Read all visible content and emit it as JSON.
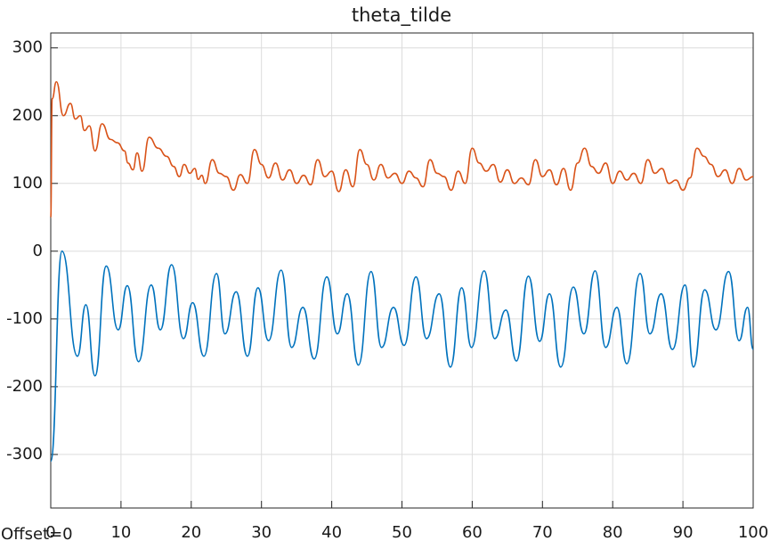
{
  "chart_data": {
    "type": "line",
    "title": "theta_tilde",
    "annotation": "Offset=0",
    "xlim": [
      0,
      100
    ],
    "xticks": [
      0,
      10,
      20,
      30,
      40,
      50,
      60,
      70,
      80,
      90,
      100
    ],
    "ylim": [
      -379,
      322
    ],
    "yticks": [
      -300,
      -200,
      -100,
      0,
      100,
      200,
      300
    ],
    "grid": true,
    "series": [
      {
        "color": "#0072bd",
        "x": [
          0,
          1.6,
          3.8,
          5.0,
          6.3,
          7.9,
          9.6,
          10.9,
          12.5,
          14.3,
          15.6,
          17.2,
          18.9,
          20.2,
          21.8,
          23.6,
          24.8,
          26.4,
          28.0,
          29.5,
          31.0,
          32.8,
          34.3,
          35.9,
          37.5,
          39.3,
          40.8,
          42.2,
          43.8,
          45.6,
          47.1,
          48.8,
          50.3,
          52.0,
          53.5,
          55.3,
          56.9,
          58.5,
          59.9,
          61.7,
          63.2,
          64.8,
          66.3,
          68.0,
          69.6,
          71.0,
          72.6,
          74.4,
          75.9,
          77.5,
          79.0,
          80.6,
          82.0,
          83.9,
          85.3,
          86.9,
          88.5,
          90.3,
          91.5,
          93.1,
          94.7,
          96.5,
          98.0,
          99.2,
          100
        ],
        "values": [
          -310,
          0,
          -155,
          -79,
          -184,
          -22,
          -116,
          -51,
          -163,
          -50,
          -116,
          -20,
          -129,
          -76,
          -155,
          -33,
          -122,
          -60,
          -155,
          -54,
          -132,
          -28,
          -142,
          -83,
          -159,
          -38,
          -122,
          -63,
          -168,
          -30,
          -142,
          -83,
          -139,
          -38,
          -129,
          -63,
          -171,
          -54,
          -142,
          -29,
          -129,
          -87,
          -162,
          -37,
          -133,
          -63,
          -171,
          -53,
          -122,
          -29,
          -142,
          -83,
          -166,
          -33,
          -122,
          -63,
          -145,
          -50,
          -171,
          -57,
          -116,
          -30,
          -132,
          -83,
          -145
        ]
      },
      {
        "color": "#d95319",
        "x": [
          0,
          0.2,
          0.8,
          1.8,
          2.8,
          3.5,
          4.2,
          4.8,
          5.5,
          6.3,
          7.3,
          8.5,
          9.5,
          10.5,
          11,
          11.7,
          12.3,
          13,
          14,
          15.3,
          16.5,
          17.5,
          18.3,
          19,
          19.8,
          20.5,
          21,
          21.5,
          22,
          23,
          24,
          25,
          26,
          27,
          28,
          29,
          30,
          31,
          32,
          33,
          34,
          35,
          36,
          37,
          38,
          39,
          40,
          41,
          42,
          43,
          44,
          45,
          46,
          47,
          48,
          49,
          50,
          51,
          52,
          53,
          54,
          55,
          56,
          57,
          58,
          59,
          60,
          61,
          62,
          63,
          64,
          65,
          66,
          67,
          68,
          69,
          70,
          71,
          72,
          73,
          74,
          75,
          76,
          77,
          78,
          79,
          80,
          81,
          82,
          83,
          84,
          85,
          86,
          87,
          88,
          89,
          90,
          91,
          92,
          93,
          94,
          95,
          96,
          97,
          98,
          99,
          100
        ],
        "values": [
          50,
          225,
          250,
          200,
          218,
          195,
          200,
          178,
          185,
          148,
          188,
          165,
          160,
          148,
          130,
          120,
          145,
          118,
          168,
          152,
          140,
          125,
          110,
          128,
          115,
          122,
          106,
          112,
          100,
          135,
          115,
          110,
          90,
          113,
          100,
          150,
          128,
          108,
          130,
          105,
          120,
          100,
          112,
          98,
          135,
          110,
          118,
          88,
          120,
          95,
          150,
          128,
          105,
          128,
          108,
          115,
          100,
          118,
          108,
          95,
          135,
          115,
          110,
          90,
          118,
          100,
          152,
          130,
          118,
          128,
          102,
          120,
          100,
          108,
          98,
          135,
          110,
          120,
          98,
          122,
          90,
          130,
          152,
          125,
          115,
          130,
          100,
          118,
          105,
          115,
          100,
          135,
          115,
          122,
          100,
          105,
          90,
          108,
          152,
          140,
          128,
          110,
          120,
          100,
          122,
          105,
          110
        ]
      }
    ]
  }
}
